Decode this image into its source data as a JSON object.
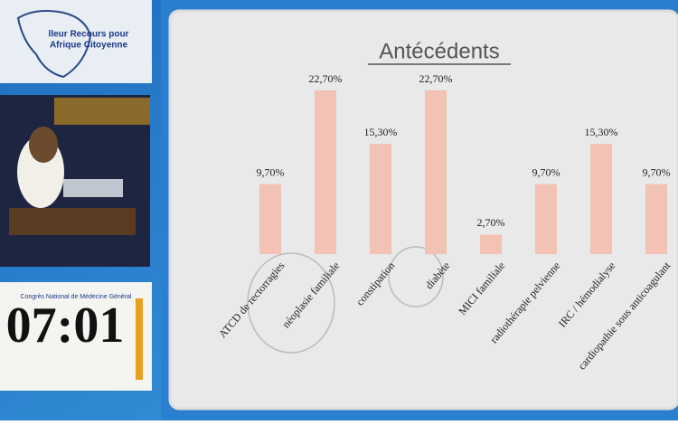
{
  "chart_data": {
    "type": "bar",
    "title": "Antécédents",
    "categories": [
      "ATCD de rectorragies",
      "néoplasie familiale",
      "constipation",
      "diabète",
      "MICI familiale",
      "radiothérapie pelvienne",
      "IRC / hémodialyse",
      "cardiopathie sous anticoagulant"
    ],
    "values": [
      9.7,
      22.7,
      15.3,
      22.7,
      2.7,
      9.7,
      15.3,
      9.7
    ],
    "value_labels": [
      "9,70%",
      "22,70%",
      "15,30%",
      "22,70%",
      "2,70%",
      "9,70%",
      "15,30%",
      "9,70%"
    ],
    "color": "#f2c2b4"
  },
  "sidebar": {
    "logo_lines": [
      "lleur Recours pour",
      "Afrique Citoyenne"
    ],
    "congress": "Congrès National de Médecine Général",
    "timer": "07:01"
  }
}
